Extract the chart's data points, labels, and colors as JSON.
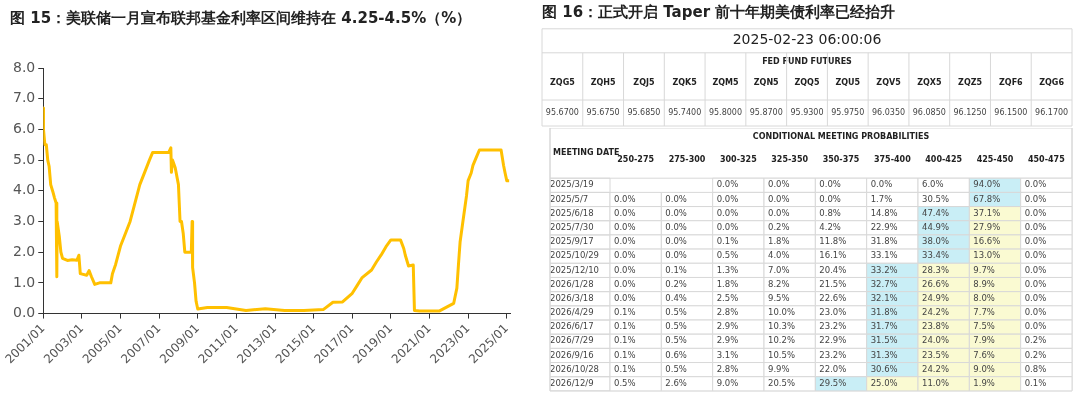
{
  "chart_data": [
    {
      "type": "line",
      "title": "图 15：美联储一月宣布联邦基金利率区间维持在 4.25-4.5%（%）",
      "series": [
        {
          "color": "#ffc000",
          "x": [
            "2001-01-02",
            "2001-01-05",
            "2001-01-31",
            "2001-02-28",
            "2001-03-25",
            "2001-04-20",
            "2001-05-20",
            "2001-06-30",
            "2001-07-31",
            "2001-08-31",
            "2001-09-14",
            "2001-09-20",
            "2001-10-31",
            "2001-11-30",
            "2001-12-31",
            "2002-03-31",
            "2002-06-30",
            "2002-09-30",
            "2002-11-05",
            "2002-12-01",
            "2003-03-31",
            "2003-05-15",
            "2003-06-30",
            "2003-08-31",
            "2003-11-30",
            "2004-03-31",
            "2004-06-30",
            "2004-07-31",
            "2004-09-30",
            "2004-12-31",
            "2005-03-31",
            "2005-06-30",
            "2005-09-30",
            "2005-12-31",
            "2006-03-31",
            "2006-06-30",
            "2006-08-31",
            "2007-06-30",
            "2007-08-09",
            "2007-08-20",
            "2007-09-10",
            "2007-10-31",
            "2007-12-31",
            "2008-01-31",
            "2008-02-28",
            "2008-03-31",
            "2008-04-30",
            "2008-06-30",
            "2008-08-31",
            "2008-09-16",
            "2008-09-25",
            "2008-10-31",
            "2008-11-30",
            "2008-12-31",
            "2009-06-30",
            "2010-06-30",
            "2011-06-30",
            "2012-06-30",
            "2013-06-30",
            "2014-06-30",
            "2015-06-30",
            "2015-12-31",
            "2016-06-30",
            "2016-12-31",
            "2017-03-31",
            "2017-06-30",
            "2017-12-31",
            "2018-03-31",
            "2018-06-30",
            "2018-09-30",
            "2018-12-31",
            "2019-06-30",
            "2019-08-31",
            "2019-09-30",
            "2019-11-30",
            "2020-02-28",
            "2020-03-20",
            "2020-06-30",
            "2021-06-30",
            "2022-03-31",
            "2022-05-31",
            "2022-06-30",
            "2022-07-31",
            "2022-09-30",
            "2022-11-30",
            "2022-12-31",
            "2023-02-28",
            "2023-03-31",
            "2023-05-31",
            "2023-07-31",
            "2024-09-15",
            "2024-10-31",
            "2024-11-30",
            "2024-12-31",
            "2025-02-15"
          ],
          "values": [
            6.7,
            6.0,
            5.5,
            5.5,
            5.0,
            4.8,
            4.2,
            3.97,
            3.77,
            3.6,
            1.2,
            3.0,
            2.5,
            2.0,
            1.8,
            1.73,
            1.75,
            1.74,
            1.9,
            1.3,
            1.25,
            1.4,
            1.2,
            0.95,
            1.0,
            1.0,
            1.0,
            1.3,
            1.6,
            2.2,
            2.6,
            3.0,
            3.6,
            4.2,
            4.6,
            5.0,
            5.25,
            5.25,
            5.4,
            4.6,
            5.0,
            4.75,
            4.2,
            3.0,
            3.0,
            2.6,
            2.0,
            2.0,
            2.0,
            3.0,
            1.5,
            1.0,
            0.4,
            0.15,
            0.2,
            0.2,
            0.1,
            0.16,
            0.1,
            0.1,
            0.13,
            0.37,
            0.38,
            0.66,
            0.91,
            1.16,
            1.42,
            1.68,
            1.91,
            2.18,
            2.4,
            2.4,
            2.12,
            1.9,
            1.55,
            1.58,
            0.1,
            0.08,
            0.08,
            0.33,
            0.83,
            1.58,
            2.33,
            3.08,
            3.83,
            4.33,
            4.58,
            4.83,
            5.08,
            5.33,
            5.33,
            4.83,
            4.58,
            4.33,
            4.33
          ]
        }
      ],
      "xlim": [
        "2001-01",
        "2025-03"
      ],
      "xticks": [
        {
          "value": "2001-01",
          "label": "2001/01"
        },
        {
          "value": "2003-01",
          "label": "2003/01"
        },
        {
          "value": "2005-01",
          "label": "2005/01"
        },
        {
          "value": "2007-01",
          "label": "2007/01"
        },
        {
          "value": "2009-01",
          "label": "2009/01"
        },
        {
          "value": "2011-01",
          "label": "2011/01"
        },
        {
          "value": "2013-01",
          "label": "2013/01"
        },
        {
          "value": "2015-01",
          "label": "2015/01"
        },
        {
          "value": "2017-01",
          "label": "2017/01"
        },
        {
          "value": "2019-01",
          "label": "2019/01"
        },
        {
          "value": "2021-01",
          "label": "2021/01"
        },
        {
          "value": "2023-01",
          "label": "2023/01"
        },
        {
          "value": "2025-01",
          "label": "2025/01"
        }
      ],
      "ylim": [
        0,
        8
      ],
      "yticks": [
        {
          "value": 0,
          "label": "0.0"
        },
        {
          "value": 1,
          "label": "1.0"
        },
        {
          "value": 2,
          "label": "2.0"
        },
        {
          "value": 3,
          "label": "3.0"
        },
        {
          "value": 4,
          "label": "4.0"
        },
        {
          "value": 5,
          "label": "5.0"
        },
        {
          "value": 6,
          "label": "6.0"
        },
        {
          "value": 7,
          "label": "7.0"
        },
        {
          "value": 8,
          "label": "8.0"
        }
      ],
      "grid": false,
      "legend": false,
      "marker": "none",
      "line_style": "solid"
    },
    {
      "type": "heatmap",
      "title": "图 16：正式开启 Taper 前十年期美债利率已经抬升",
      "subtitle": "2025-02-23 06:00:06",
      "xlabel": "FED FUND FUTURES",
      "categories": [
        "ZQG5",
        "ZQH5",
        "ZQJ5",
        "ZQK5",
        "ZQM5",
        "ZQN5",
        "ZQQ5",
        "ZQU5",
        "ZQV5",
        "ZQX5",
        "ZQZ5",
        "ZQF6",
        "ZQG6"
      ],
      "y_categories": [
        null
      ],
      "cells": [
        [
          95.67,
          95.675,
          95.685,
          95.74,
          95.8,
          95.87,
          95.93,
          95.975,
          96.035,
          96.085,
          96.125,
          96.15,
          96.17
        ]
      ],
      "cell_labels": [
        [
          "95.6700",
          "95.6750",
          "95.6850",
          "95.7400",
          "95.8000",
          "95.8700",
          "95.9300",
          "95.9750",
          "96.0350",
          "96.0850",
          "96.1250",
          "96.1500",
          "96.1700"
        ]
      ]
    },
    {
      "type": "heatmap",
      "title": "CONDITIONAL MEETING PROBABILITIES",
      "ylabel": "MEETING DATE",
      "categories": [
        "250-275",
        "275-300",
        "300-325",
        "325-350",
        "350-375",
        "375-400",
        "400-425",
        "425-450",
        "450-475"
      ],
      "y_categories": [
        "2025/3/19",
        "2025/5/7",
        "2025/6/18",
        "2025/7/30",
        "2025/9/17",
        "2025/10/29",
        "2025/12/10",
        "2026/1/28",
        "2026/3/18",
        "2026/4/29",
        "2026/6/17",
        "2026/7/29",
        "2026/9/16",
        "2026/10/28",
        "2026/12/9"
      ],
      "cells": [
        [
          null,
          null,
          0.0,
          0.0,
          0.0,
          0.0,
          6.0,
          94.0,
          0.0
        ],
        [
          0.0,
          0.0,
          0.0,
          0.0,
          0.0,
          1.7,
          30.5,
          67.8,
          0.0
        ],
        [
          0.0,
          0.0,
          0.0,
          0.0,
          0.8,
          14.8,
          47.4,
          37.1,
          0.0
        ],
        [
          0.0,
          0.0,
          0.0,
          0.2,
          4.2,
          22.9,
          44.9,
          27.9,
          0.0
        ],
        [
          0.0,
          0.0,
          0.1,
          1.8,
          11.8,
          31.8,
          38.0,
          16.6,
          0.0
        ],
        [
          0.0,
          0.0,
          0.5,
          4.0,
          16.1,
          33.1,
          33.4,
          13.0,
          0.0
        ],
        [
          0.0,
          0.1,
          1.3,
          7.0,
          20.4,
          33.2,
          28.3,
          9.7,
          0.0
        ],
        [
          0.0,
          0.2,
          1.8,
          8.2,
          21.5,
          32.7,
          26.6,
          8.9,
          0.0
        ],
        [
          0.0,
          0.4,
          2.5,
          9.5,
          22.6,
          32.1,
          24.9,
          8.0,
          0.0
        ],
        [
          0.1,
          0.5,
          2.8,
          10.0,
          23.0,
          31.8,
          24.2,
          7.7,
          0.0
        ],
        [
          0.1,
          0.5,
          2.9,
          10.3,
          23.2,
          31.7,
          23.8,
          7.5,
          0.0
        ],
        [
          0.1,
          0.5,
          2.9,
          10.2,
          22.9,
          31.5,
          24.0,
          7.9,
          0.2
        ],
        [
          0.1,
          0.6,
          3.1,
          10.5,
          23.2,
          31.3,
          23.5,
          7.6,
          0.2
        ],
        [
          0.1,
          0.5,
          2.8,
          9.9,
          22.0,
          30.6,
          24.2,
          9.0,
          0.8
        ],
        [
          0.5,
          2.6,
          9.0,
          20.5,
          29.5,
          25.0,
          11.0,
          1.9,
          0.1
        ]
      ],
      "cell_labels": [
        [
          null,
          null,
          "0.0%",
          "0.0%",
          "0.0%",
          "0.0%",
          "6.0%",
          "94.0%",
          "0.0%"
        ],
        [
          "0.0%",
          "0.0%",
          "0.0%",
          "0.0%",
          "0.0%",
          "1.7%",
          "30.5%",
          "67.8%",
          "0.0%"
        ],
        [
          "0.0%",
          "0.0%",
          "0.0%",
          "0.0%",
          "0.8%",
          "14.8%",
          "47.4%",
          "37.1%",
          "0.0%"
        ],
        [
          "0.0%",
          "0.0%",
          "0.0%",
          "0.2%",
          "4.2%",
          "22.9%",
          "44.9%",
          "27.9%",
          "0.0%"
        ],
        [
          "0.0%",
          "0.0%",
          "0.1%",
          "1.8%",
          "11.8%",
          "31.8%",
          "38.0%",
          "16.6%",
          "0.0%"
        ],
        [
          "0.0%",
          "0.0%",
          "0.5%",
          "4.0%",
          "16.1%",
          "33.1%",
          "33.4%",
          "13.0%",
          "0.0%"
        ],
        [
          "0.0%",
          "0.1%",
          "1.3%",
          "7.0%",
          "20.4%",
          "33.2%",
          "28.3%",
          "9.7%",
          "0.0%"
        ],
        [
          "0.0%",
          "0.2%",
          "1.8%",
          "8.2%",
          "21.5%",
          "32.7%",
          "26.6%",
          "8.9%",
          "0.0%"
        ],
        [
          "0.0%",
          "0.4%",
          "2.5%",
          "9.5%",
          "22.6%",
          "32.1%",
          "24.9%",
          "8.0%",
          "0.0%"
        ],
        [
          "0.1%",
          "0.5%",
          "2.8%",
          "10.0%",
          "23.0%",
          "31.8%",
          "24.2%",
          "7.7%",
          "0.0%"
        ],
        [
          "0.1%",
          "0.5%",
          "2.9%",
          "10.3%",
          "23.2%",
          "31.7%",
          "23.8%",
          "7.5%",
          "0.0%"
        ],
        [
          "0.1%",
          "0.5%",
          "2.9%",
          "10.2%",
          "22.9%",
          "31.5%",
          "24.0%",
          "7.9%",
          "0.2%"
        ],
        [
          "0.1%",
          "0.6%",
          "3.1%",
          "10.5%",
          "23.2%",
          "31.3%",
          "23.5%",
          "7.6%",
          "0.2%"
        ],
        [
          "0.1%",
          "0.5%",
          "2.8%",
          "9.9%",
          "22.0%",
          "30.6%",
          "24.2%",
          "9.0%",
          "0.8%"
        ],
        [
          "0.5%",
          "2.6%",
          "9.0%",
          "20.5%",
          "29.5%",
          "25.0%",
          "11.0%",
          "1.9%",
          "0.1%"
        ]
      ]
    }
  ]
}
